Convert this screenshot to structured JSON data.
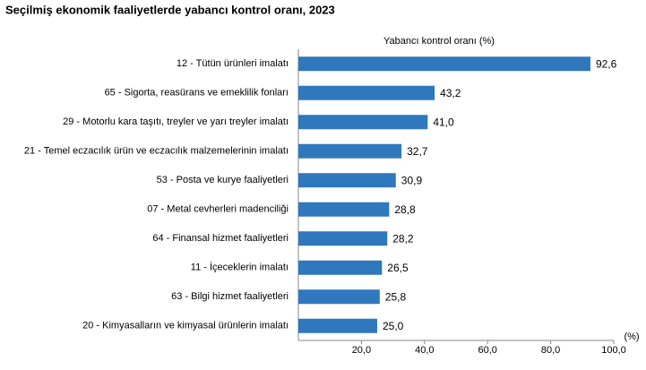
{
  "chart_data": {
    "type": "hbar",
    "title": "Seçilmiş ekonomik faaliyetlerde yabancı kontrol oranı, 2023",
    "value_axis_title": "Yabancı kontrol oranı (%)",
    "value_axis_unit": "(%)",
    "categories": [
      "12 - Tütün ürünleri imalatı",
      "65 - Sigorta, reasürans ve emeklilik fonları",
      "29 - Motorlu kara taşıtı, treyler ve yarı treyler imalatı",
      "21 - Temel eczacılık ürün ve eczacılık malzemelerinin imalatı",
      "53 - Posta ve kurye faaliyetleri",
      "07 - Metal cevherleri madenciliği",
      "64 - Finansal hizmet faaliyetleri",
      "11 - İçeceklerin imalatı",
      "63 - Bilgi hizmet faaliyetleri",
      "20 - Kimyasalların ve kimyasal ürünlerin imalatı"
    ],
    "values": [
      92.6,
      43.2,
      41.0,
      32.7,
      30.9,
      28.8,
      28.2,
      26.5,
      25.8,
      25.0
    ],
    "value_labels": [
      "92,6",
      "43,2",
      "41,0",
      "32,7",
      "30,9",
      "28,8",
      "28,2",
      "26,5",
      "25,8",
      "25,0"
    ],
    "color": "#2f78bd",
    "xlim": [
      0,
      100
    ],
    "xticks": [
      {
        "value": 20,
        "label": "20,0"
      },
      {
        "value": 40,
        "label": "40,0"
      },
      {
        "value": 60,
        "label": "60,0"
      },
      {
        "value": 80,
        "label": "80,0"
      },
      {
        "value": 100,
        "label": "100,0"
      }
    ]
  }
}
